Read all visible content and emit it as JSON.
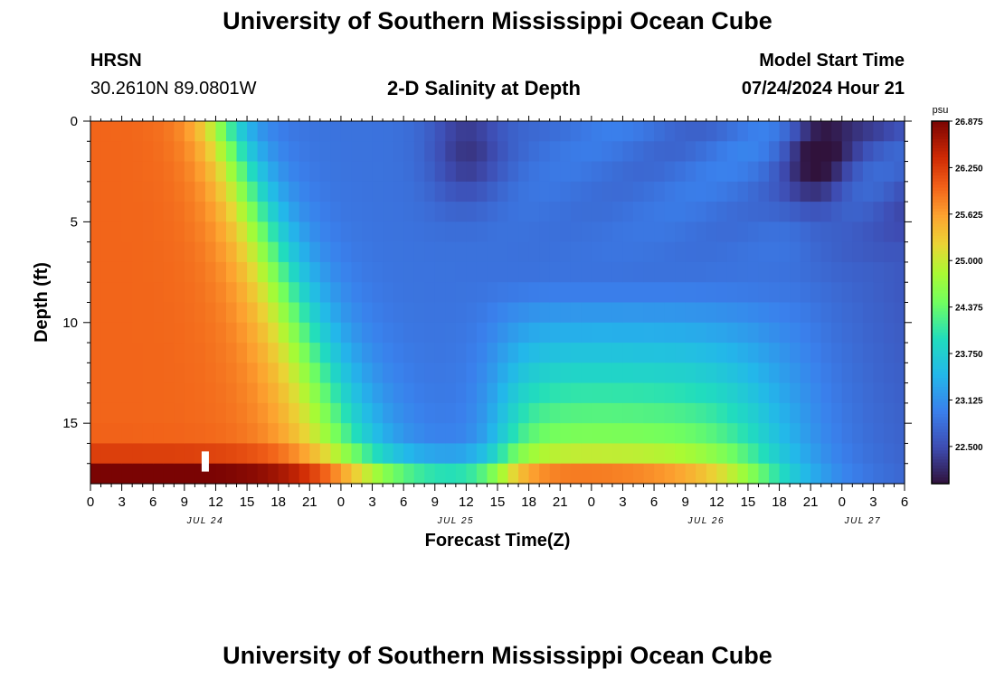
{
  "header": {
    "title_top": "University of Southern Mississippi Ocean Cube",
    "station": "HRSN",
    "coords": "30.2610N  89.0801W",
    "chart_title": "2-D Salinity at Depth",
    "model_label": "Model Start Time",
    "model_time": "07/24/2024 Hour 21",
    "title_bottom": "University of Southern Mississippi Ocean Cube"
  },
  "chart_data": {
    "type": "heatmap",
    "title": "2-D Salinity at Depth",
    "xlabel": "Forecast Time(Z)",
    "ylabel": "Depth (ft)",
    "x_range_hours": [
      0,
      78
    ],
    "x_tick_step_hours": 3,
    "x_tick_labels": [
      "0",
      "3",
      "6",
      "9",
      "12",
      "15",
      "18",
      "21",
      "0",
      "3",
      "6",
      "9",
      "12",
      "15",
      "18",
      "21",
      "0",
      "3",
      "6",
      "9",
      "12",
      "15",
      "18",
      "21",
      "0",
      "3",
      "6"
    ],
    "date_labels": [
      {
        "label": "JUL 24",
        "hour": 11
      },
      {
        "label": "JUL 25",
        "hour": 35
      },
      {
        "label": "JUL 26",
        "hour": 59
      },
      {
        "label": "JUL 27",
        "hour": 74
      }
    ],
    "ylim": [
      0,
      18
    ],
    "y_inverted": true,
    "y_ticks": [
      0,
      5,
      10,
      15
    ],
    "y_tick_labels": [
      "0",
      "5",
      "10",
      "15"
    ],
    "colorbar_unit": "psu",
    "colorbar_range": [
      22.0,
      26.875
    ],
    "colorbar_ticks": [
      "26.875",
      "26.250",
      "25.625",
      "25.000",
      "24.375",
      "23.750",
      "23.125",
      "22.500"
    ],
    "colorbar_tick_values": [
      26.875,
      26.25,
      25.625,
      25.0,
      24.375,
      23.75,
      23.125,
      22.5
    ],
    "description": "Salinity (psu) vs forecast hour (x) and depth in ft (y). Values approximated from the visible color field.",
    "cursor_marker_hour": 11
  },
  "colors": {
    "axis": "#000000",
    "marker": "#ffffff"
  }
}
